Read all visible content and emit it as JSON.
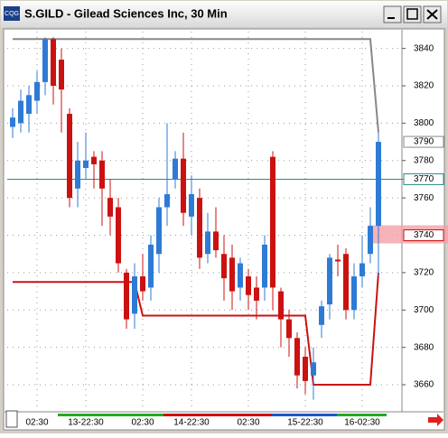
{
  "app_icon": "CQG",
  "chart_data": {
    "type": "candlestick",
    "title": "S.GILD - Gilead Sciences Inc, 30 Min",
    "categories": [
      null,
      null,
      null,
      "02:30",
      null,
      null,
      null,
      null,
      null,
      "13-22:30",
      null,
      null,
      null,
      null,
      null,
      null,
      "02:30",
      null,
      null,
      null,
      null,
      null,
      "14-22:30",
      null,
      null,
      null,
      null,
      null,
      null,
      "02:30",
      null,
      null,
      null,
      null,
      null,
      null,
      "15-22:30",
      null,
      null,
      null,
      null,
      null,
      null,
      "16-02:30",
      null,
      null
    ],
    "open": [
      3798,
      3800,
      3805,
      3812,
      3822,
      3845,
      3834,
      3805,
      3765,
      3776,
      3782,
      3780,
      3760,
      3755,
      3720,
      3698,
      3718,
      3712,
      3730,
      3755,
      3770,
      3781,
      3750,
      3760,
      3730,
      3742,
      3730,
      3728,
      3712,
      3718,
      3712,
      3712,
      3782,
      3710,
      3695,
      3685,
      3675,
      3665,
      3692,
      3703,
      3727,
      3730,
      3700,
      3718,
      3730,
      3745
    ],
    "high": [
      3808,
      3818,
      3820,
      3828,
      3846,
      3846,
      3840,
      3808,
      3790,
      3795,
      3785,
      3785,
      3770,
      3760,
      3722,
      3725,
      3730,
      3740,
      3760,
      3800,
      3785,
      3795,
      3772,
      3765,
      3752,
      3755,
      3740,
      3735,
      3728,
      3722,
      3718,
      3740,
      3785,
      3712,
      3700,
      3688,
      3680,
      3680,
      3705,
      3730,
      3735,
      3733,
      3725,
      3740,
      3755,
      3795
    ],
    "low": [
      3792,
      3795,
      3795,
      3805,
      3815,
      3810,
      3795,
      3755,
      3755,
      3770,
      3765,
      3745,
      3740,
      3720,
      3690,
      3690,
      3705,
      3705,
      3720,
      3745,
      3765,
      3745,
      3740,
      3722,
      3725,
      3728,
      3705,
      3700,
      3705,
      3700,
      3695,
      3705,
      3700,
      3680,
      3675,
      3658,
      3655,
      3652,
      3685,
      3695,
      3718,
      3695,
      3695,
      3712,
      3725,
      3718
    ],
    "close": [
      3803,
      3812,
      3815,
      3822,
      3845,
      3820,
      3818,
      3760,
      3780,
      3780,
      3778,
      3765,
      3750,
      3725,
      3695,
      3718,
      3710,
      3735,
      3755,
      3762,
      3781,
      3752,
      3762,
      3728,
      3742,
      3732,
      3717,
      3710,
      3725,
      3708,
      3705,
      3735,
      3712,
      3695,
      3685,
      3665,
      3662,
      3672,
      3702,
      3728,
      3726,
      3700,
      3718,
      3725,
      3745,
      3790
    ],
    "up_color": "#2e7bd6",
    "down_color": "#cc1111",
    "lines": [
      {
        "color": "#888888",
        "values": [
          3845,
          3845,
          3845,
          3845,
          3845,
          3845,
          3845,
          3845,
          3845,
          3845,
          3845,
          3845,
          3845,
          3845,
          3845,
          3845,
          3845,
          3845,
          3845,
          3845,
          3845,
          3845,
          3845,
          3845,
          3845,
          3845,
          3845,
          3845,
          3845,
          3845,
          3845,
          3845,
          3845,
          3845,
          3845,
          3845,
          3845,
          3845,
          3845,
          3845,
          3845,
          3845,
          3845,
          3845,
          3845,
          3795
        ]
      },
      {
        "color": "#cc1111",
        "values": [
          3715,
          3715,
          3715,
          3715,
          3715,
          3715,
          3715,
          3715,
          3715,
          3715,
          3715,
          3715,
          3715,
          3715,
          3715,
          3715,
          3697,
          3697,
          3697,
          3697,
          3697,
          3697,
          3697,
          3697,
          3697,
          3697,
          3697,
          3697,
          3697,
          3697,
          3697,
          3697,
          3697,
          3697,
          3697,
          3697,
          3697,
          3660,
          3660,
          3660,
          3660,
          3660,
          3660,
          3660,
          3660,
          3720
        ]
      }
    ],
    "price_markers": [
      3790,
      3770,
      3740
    ],
    "price_marker_colors": [
      "#888888",
      "#2a8a8a",
      "#cc1111"
    ],
    "ylim": [
      3646,
      3849
    ],
    "yticks": [
      3660,
      3680,
      3700,
      3720,
      3740,
      3760,
      3780,
      3800,
      3820,
      3840
    ],
    "grid": true
  }
}
